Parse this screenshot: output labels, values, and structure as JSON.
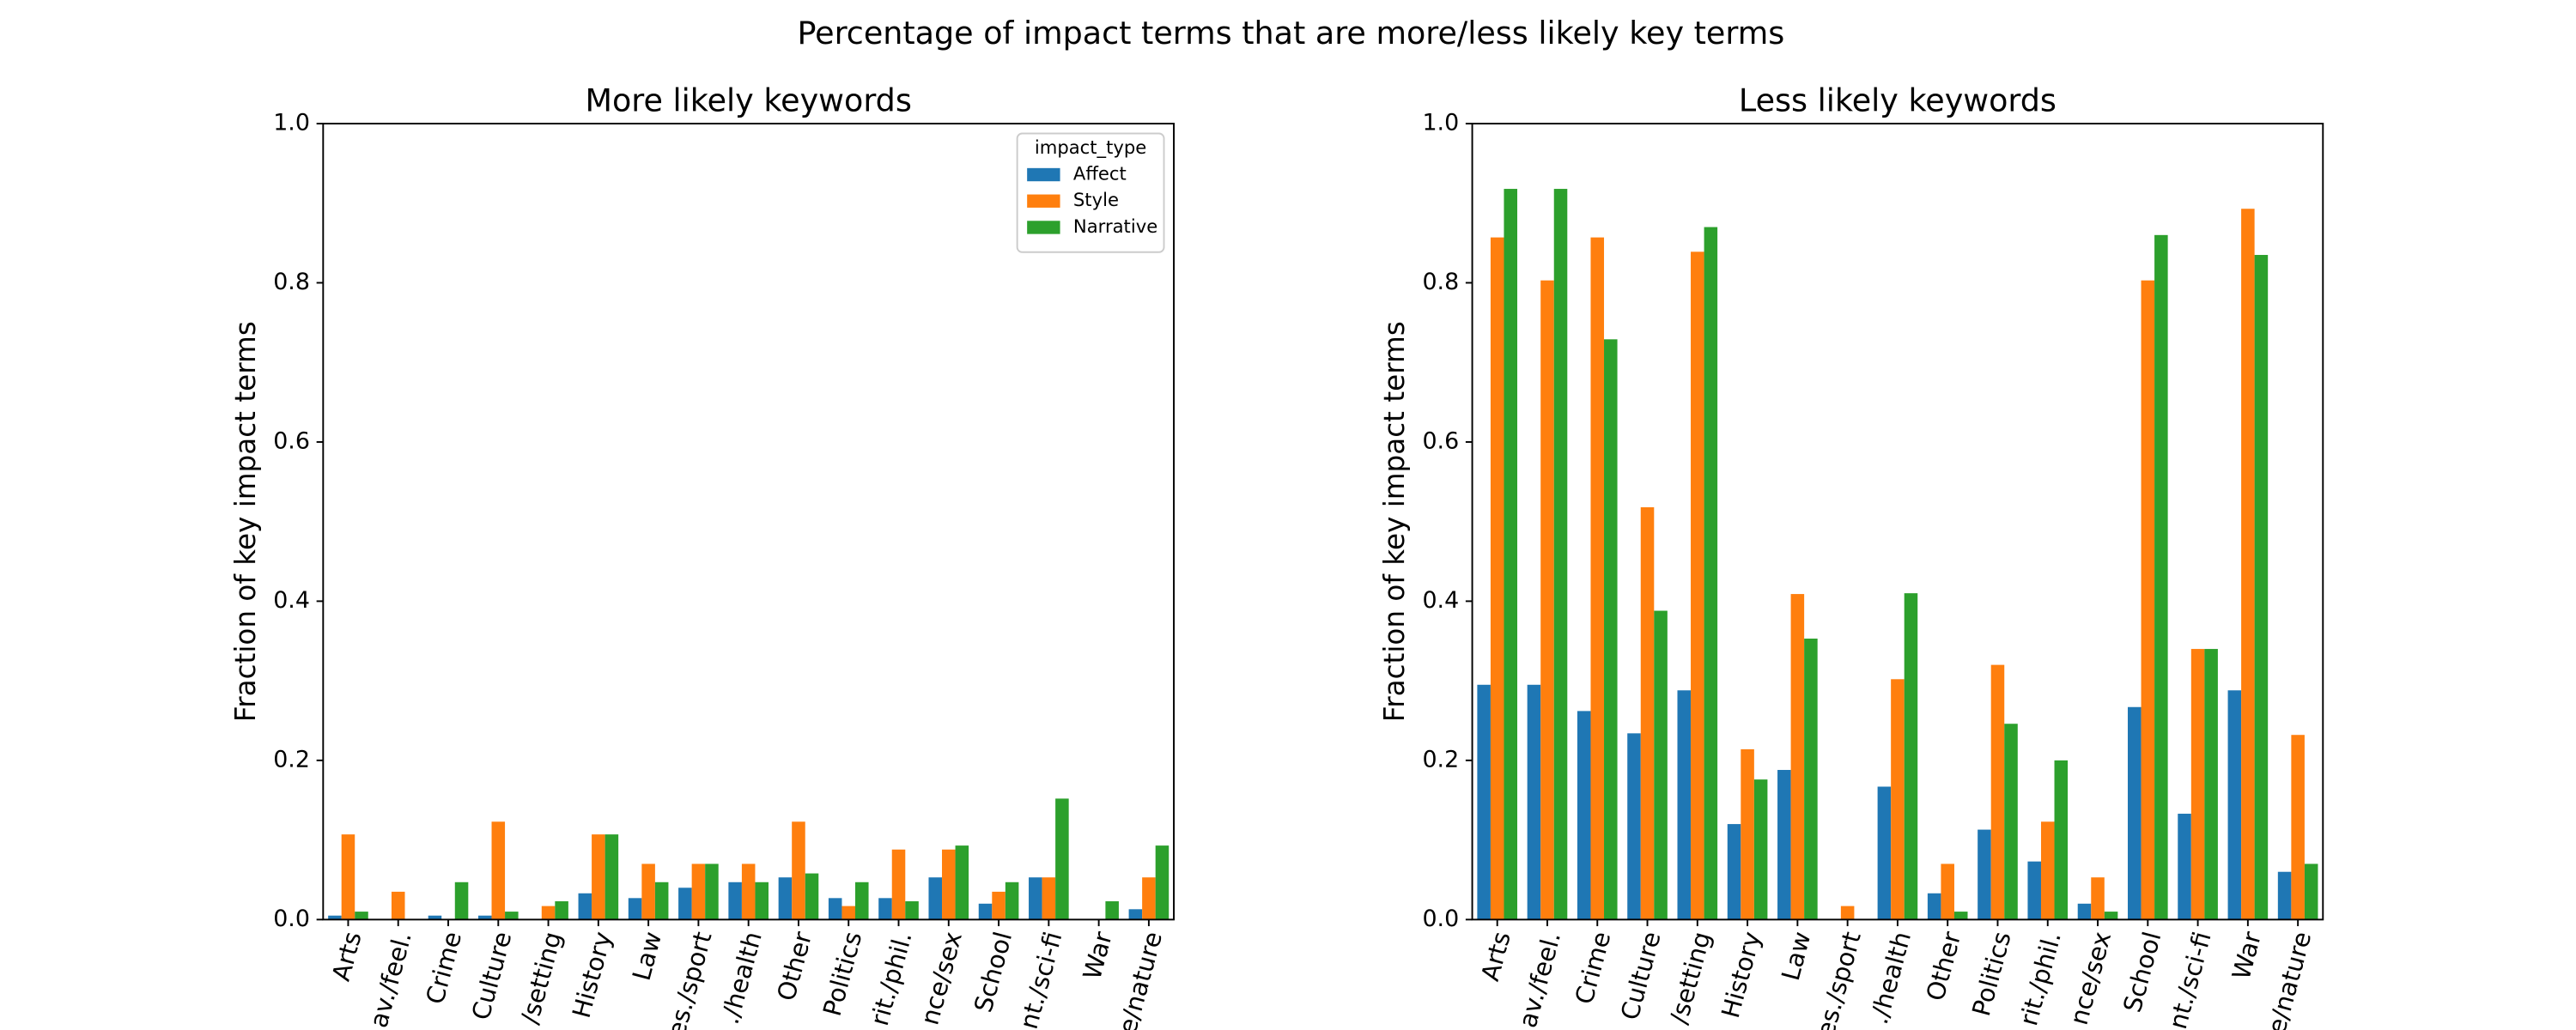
{
  "title": "Percentage of impact terms that are more/less likely key terms",
  "chart_data": [
    {
      "type": "bar",
      "title": "More likely keywords",
      "y_label": "Fraction of key impact terms",
      "categories": [
        "Arts",
        "av./feel.",
        "Crime",
        "Culture",
        "/setting",
        "History",
        "Law",
        "es./sport",
        "./health",
        "Other",
        "Politics",
        "rit./phil.",
        "nce/sex",
        "School",
        "nt./sci-fi",
        "War",
        "e/nature"
      ],
      "series": [
        {
          "name": "Affect",
          "color": "#1f77b4",
          "values": [
            0.005,
            0,
            0.005,
            0.005,
            0,
            0.033,
            0.027,
            0.04,
            0.047,
            0.053,
            0.027,
            0.027,
            0.053,
            0.02,
            0.053,
            0,
            0.013
          ]
        },
        {
          "name": "Style",
          "color": "#ff7f0e",
          "values": [
            0.107,
            0.035,
            0,
            0.123,
            0.017,
            0.107,
            0.07,
            0.07,
            0.07,
            0.123,
            0.017,
            0.088,
            0.088,
            0.035,
            0.053,
            0,
            0.053
          ]
        },
        {
          "name": "Narrative",
          "color": "#2ca02c",
          "values": [
            0.01,
            0,
            0.047,
            0.01,
            0.023,
            0.107,
            0.047,
            0.07,
            0.047,
            0.058,
            0.047,
            0.023,
            0.093,
            0.047,
            0.152,
            0.023,
            0.093
          ]
        }
      ],
      "legend_title": "impact_type",
      "legend": "upper right",
      "ylim": [
        0,
        1
      ],
      "yticks": [
        {
          "value": 0,
          "label": "0.0"
        },
        0.2,
        0.4,
        0.6,
        0.8,
        {
          "value": 1,
          "label": "1.0"
        }
      ]
    },
    {
      "type": "bar",
      "title": "Less likely keywords",
      "y_label": "Fraction of key impact terms",
      "categories": [
        "Arts",
        "av./feel.",
        "Crime",
        "Culture",
        "/setting",
        "History",
        "Law",
        "es./sport",
        "./health",
        "Other",
        "Politics",
        "rit./phil.",
        "nce/sex",
        "School",
        "nt./sci-fi",
        "War",
        "e/nature"
      ],
      "series": [
        {
          "color": "#1f77b4",
          "values": [
            0.295,
            0.295,
            0.262,
            0.234,
            0.288,
            0.12,
            0.188,
            0,
            0.167,
            0.033,
            0.113,
            0.073,
            0.02,
            0.267,
            0.133,
            0.288,
            0.06
          ]
        },
        {
          "color": "#ff7f0e",
          "values": [
            0.857,
            0.803,
            0.857,
            0.518,
            0.839,
            0.214,
            0.409,
            0.017,
            0.302,
            0.07,
            0.32,
            0.123,
            0.053,
            0.803,
            0.34,
            0.893,
            0.232
          ]
        },
        {
          "color": "#2ca02c",
          "values": [
            0.918,
            0.918,
            0.729,
            0.388,
            0.87,
            0.176,
            0.353,
            0,
            0.41,
            0.01,
            0.246,
            0.2,
            0.01,
            0.86,
            0.34,
            0.835,
            0.07
          ]
        }
      ],
      "ylim": [
        0,
        1
      ],
      "yticks": [
        {
          "value": 0,
          "label": "0.0"
        },
        0.2,
        0.4,
        0.6,
        0.8,
        {
          "value": 1,
          "label": "1.0"
        }
      ]
    }
  ]
}
